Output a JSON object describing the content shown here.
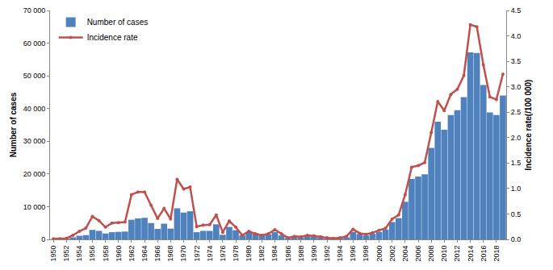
{
  "chart_data": {
    "type": "bar+line",
    "ylabel": "Number of cases",
    "y2label": "Incidence rate(/100 000)",
    "categories": [
      "1950",
      null,
      "1952",
      null,
      "1954",
      null,
      "1956",
      null,
      "1958",
      null,
      "1960",
      null,
      "1962",
      null,
      "1964",
      null,
      "1966",
      null,
      "1968",
      null,
      "1970",
      null,
      "1972",
      null,
      "1974",
      null,
      "1976",
      null,
      "1978",
      null,
      "1980",
      null,
      "1982",
      null,
      "1984",
      null,
      "1986",
      null,
      "1988",
      null,
      "1990",
      null,
      "1992",
      null,
      "1994",
      null,
      "1996",
      null,
      "1998",
      null,
      "2000",
      null,
      "2002",
      null,
      "2004",
      null,
      "2006",
      null,
      "2008",
      null,
      "2010",
      null,
      "2012",
      null,
      "2014",
      null,
      "2016",
      null,
      "2018",
      null
    ],
    "series": [
      {
        "name": "Number of cases",
        "type": "bar",
        "color": "#4f81bd",
        "values": [
          50,
          100,
          200,
          600,
          1100,
          1300,
          2900,
          2600,
          1800,
          2200,
          2300,
          2400,
          6000,
          6400,
          6600,
          5000,
          3200,
          4800,
          3300,
          9500,
          8200,
          8600,
          2200,
          2600,
          2600,
          4600,
          1400,
          3800,
          2800,
          1200,
          2200,
          1800,
          1200,
          1500,
          2200,
          1200,
          400,
          700,
          600,
          900,
          800,
          500,
          300,
          300,
          400,
          600,
          2300,
          1600,
          1200,
          1700,
          2300,
          3000,
          5300,
          6500,
          11500,
          18500,
          19200,
          19900,
          28000,
          36000,
          33500,
          38000,
          39500,
          43500,
          57200,
          57000,
          47200,
          38800,
          38000,
          44000
        ]
      },
      {
        "name": "Incidence rate",
        "type": "line",
        "axis": "y2",
        "color": "#c0504d",
        "marker": "circle",
        "values": [
          0.01,
          0.01,
          0.02,
          0.08,
          0.16,
          0.22,
          0.45,
          0.37,
          0.24,
          0.32,
          0.33,
          0.34,
          0.88,
          0.93,
          0.93,
          0.67,
          0.41,
          0.61,
          0.4,
          1.18,
          0.99,
          1.03,
          0.25,
          0.28,
          0.29,
          0.48,
          0.14,
          0.36,
          0.24,
          0.08,
          0.16,
          0.11,
          0.08,
          0.11,
          0.19,
          0.11,
          0.03,
          0.06,
          0.05,
          0.08,
          0.07,
          0.05,
          0.03,
          0.02,
          0.03,
          0.06,
          0.2,
          0.12,
          0.1,
          0.13,
          0.18,
          0.22,
          0.4,
          0.48,
          0.88,
          1.42,
          1.45,
          1.51,
          2.1,
          2.71,
          2.53,
          2.85,
          2.95,
          3.22,
          4.22,
          4.18,
          3.43,
          2.8,
          2.75,
          3.25
        ]
      }
    ],
    "ylim": [
      0,
      70000
    ],
    "yticks": [
      0,
      {
        "value": 10000,
        "label": "10 000"
      },
      {
        "value": 20000,
        "label": "20 000"
      },
      {
        "value": 30000,
        "label": "30 000"
      },
      {
        "value": 40000,
        "label": "40 000"
      },
      {
        "value": 50000,
        "label": "50 000"
      },
      {
        "value": 60000,
        "label": "60 000"
      },
      {
        "value": 70000,
        "label": "70 000"
      }
    ],
    "y2lim": [
      0,
      4.5
    ],
    "y2ticks": [
      {
        "value": 0,
        "label": "0.0"
      },
      0.5,
      {
        "value": 1,
        "label": "1.0"
      },
      1.5,
      {
        "value": 2,
        "label": "2.0"
      },
      2.5,
      {
        "value": 3,
        "label": "3.0"
      },
      3.5,
      {
        "value": 4,
        "label": "4.0"
      },
      4.5
    ],
    "legend": "upper left",
    "grid": false
  }
}
